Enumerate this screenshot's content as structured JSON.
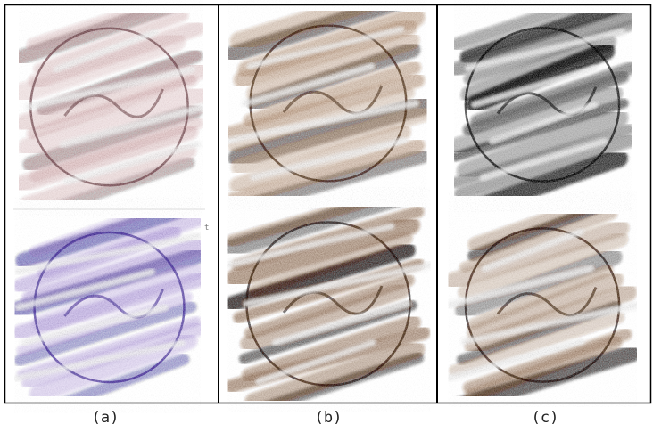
{
  "panels": [
    {
      "label": "(a)"
    },
    {
      "label": "(b)"
    },
    {
      "label": "(c)"
    }
  ],
  "stray_mark": "t"
}
